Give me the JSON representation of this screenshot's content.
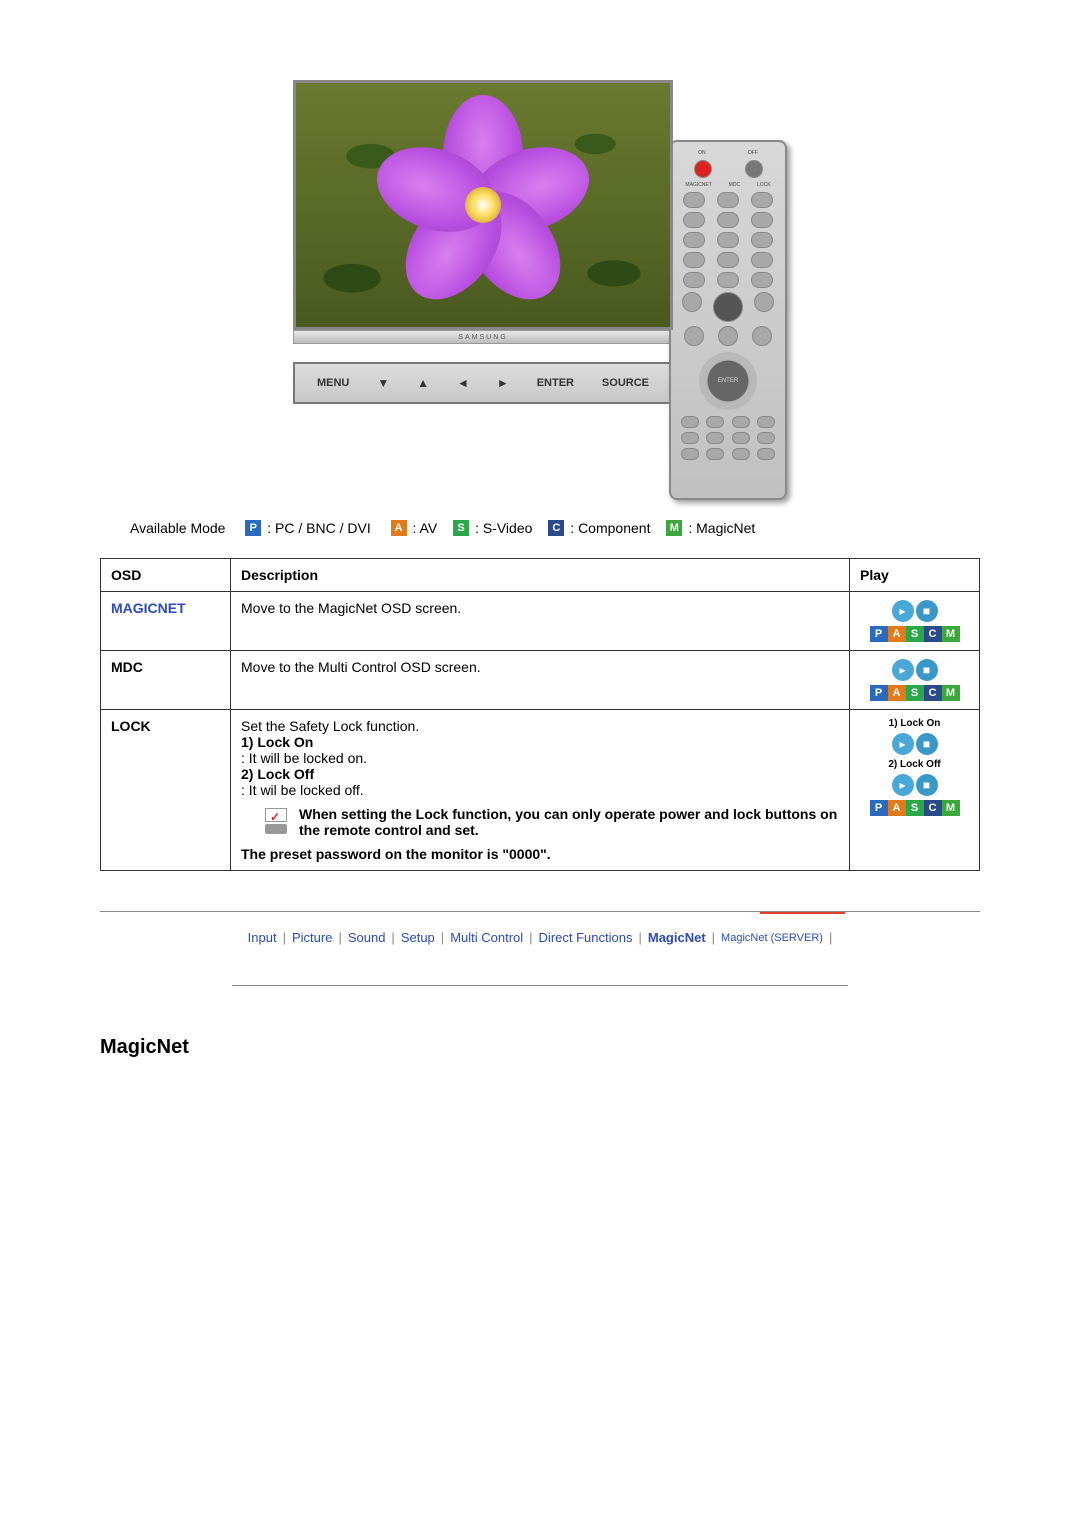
{
  "tv": {
    "brand": "SAMSUNG",
    "buttons": {
      "menu": "MENU",
      "enter": "ENTER",
      "source": "SOURCE"
    }
  },
  "available_mode": {
    "label": "Available Mode",
    "p": ": PC / BNC / DVI",
    "a": ": AV",
    "s": ": S-Video",
    "c": ": Component",
    "m": ": MagicNet"
  },
  "badges": {
    "P": "P",
    "A": "A",
    "S": "S",
    "C": "C",
    "M": "M"
  },
  "table": {
    "headers": {
      "osd": "OSD",
      "description": "Description",
      "play": "Play"
    },
    "rows": {
      "magicnet": {
        "osd": "MAGICNET",
        "desc": "Move to the MagicNet OSD screen."
      },
      "mdc": {
        "osd": "MDC",
        "desc": "Move to the Multi Control OSD screen."
      },
      "lock": {
        "osd": "LOCK",
        "intro": "Set the Safety Lock function.",
        "opt1_title": "1) Lock On",
        "opt1_desc": ": It will be locked on.",
        "opt2_title": "2) Lock Off",
        "opt2_desc": ": It wil be locked off.",
        "note": "When setting the Lock function, you can only operate power and lock buttons on the remote control and set.",
        "preset": "The preset password on the monitor is \"0000\".",
        "play_label1": "1) Lock On",
        "play_label2": "2) Lock Off"
      }
    }
  },
  "nav": {
    "input": "Input",
    "picture": "Picture",
    "sound": "Sound",
    "setup": "Setup",
    "multi": "Multi Control",
    "direct": "Direct Functions",
    "magicnet": "MagicNet",
    "server": "MagicNet (SERVER)"
  },
  "section_title": "MagicNet",
  "colors": {
    "p": "#2a6abf",
    "a": "#e07a1a",
    "s": "#2aa84a",
    "c": "#2a4a8a",
    "m": "#3aa83a",
    "link": "#2a4abf",
    "redline": "#e0402a"
  }
}
